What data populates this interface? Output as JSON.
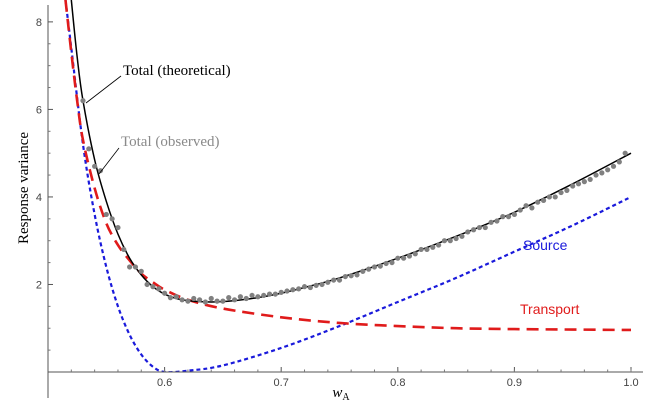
{
  "chart_data": {
    "type": "line",
    "title": "",
    "xlabel_base": "w",
    "xlabel_sub": "A",
    "ylabel": "Response variance",
    "xlim": [
      0.5,
      1.0
    ],
    "ylim": [
      0,
      8.5
    ],
    "xticks": [
      "0.6",
      "0.7",
      "0.8",
      "0.9",
      "1.0"
    ],
    "yticks": [
      "2",
      "4",
      "6",
      "8"
    ],
    "grid": false,
    "colors": {
      "total_theoretical": "#000000",
      "total_observed": "#808080",
      "source": "#1a1adb",
      "transport": "#e01b1b"
    },
    "series": [
      {
        "name": "Total (theoretical)",
        "style": "solid",
        "x": [
          0.52,
          0.525,
          0.53,
          0.54,
          0.55,
          0.56,
          0.57,
          0.58,
          0.59,
          0.6,
          0.61,
          0.62,
          0.64,
          0.66,
          0.68,
          0.7,
          0.72,
          0.75,
          0.8,
          0.85,
          0.9,
          0.95,
          1.0
        ],
        "y": [
          8.5,
          7.2,
          6.2,
          4.85,
          3.9,
          3.15,
          2.6,
          2.22,
          1.95,
          1.78,
          1.68,
          1.63,
          1.6,
          1.63,
          1.7,
          1.8,
          1.93,
          2.15,
          2.6,
          3.1,
          3.65,
          4.3,
          5.0
        ]
      },
      {
        "name": "Total (observed)",
        "style": "points",
        "x": [
          0.53,
          0.535,
          0.54,
          0.545,
          0.55,
          0.555,
          0.56,
          0.565,
          0.57,
          0.575,
          0.58,
          0.585,
          0.59,
          0.595,
          0.6,
          0.605,
          0.61,
          0.615,
          0.62,
          0.625,
          0.63,
          0.635,
          0.64,
          0.645,
          0.65,
          0.655,
          0.66,
          0.665,
          0.67,
          0.675,
          0.68,
          0.685,
          0.69,
          0.695,
          0.7,
          0.705,
          0.71,
          0.715,
          0.72,
          0.725,
          0.73,
          0.735,
          0.74,
          0.745,
          0.75,
          0.755,
          0.76,
          0.765,
          0.77,
          0.775,
          0.78,
          0.785,
          0.79,
          0.795,
          0.8,
          0.805,
          0.81,
          0.815,
          0.82,
          0.825,
          0.83,
          0.835,
          0.84,
          0.845,
          0.85,
          0.855,
          0.86,
          0.865,
          0.87,
          0.875,
          0.88,
          0.885,
          0.89,
          0.895,
          0.9,
          0.905,
          0.91,
          0.915,
          0.92,
          0.925,
          0.93,
          0.935,
          0.94,
          0.945,
          0.95,
          0.955,
          0.96,
          0.965,
          0.97,
          0.975,
          0.98,
          0.985,
          0.99,
          0.995
        ],
        "y": [
          6.2,
          5.1,
          4.7,
          4.6,
          3.6,
          3.5,
          3.3,
          2.8,
          2.4,
          2.4,
          2.3,
          2.0,
          1.95,
          1.9,
          1.8,
          1.7,
          1.72,
          1.65,
          1.62,
          1.68,
          1.65,
          1.6,
          1.68,
          1.62,
          1.62,
          1.7,
          1.65,
          1.72,
          1.68,
          1.75,
          1.72,
          1.75,
          1.78,
          1.78,
          1.82,
          1.85,
          1.88,
          1.9,
          1.95,
          1.93,
          1.98,
          2.0,
          2.05,
          2.1,
          2.1,
          2.18,
          2.2,
          2.22,
          2.3,
          2.35,
          2.4,
          2.42,
          2.48,
          2.5,
          2.6,
          2.6,
          2.65,
          2.7,
          2.8,
          2.8,
          2.85,
          2.9,
          3.0,
          3.0,
          3.05,
          3.1,
          3.2,
          3.25,
          3.3,
          3.3,
          3.42,
          3.45,
          3.55,
          3.55,
          3.6,
          3.7,
          3.8,
          3.75,
          3.88,
          3.92,
          4.0,
          4.0,
          4.1,
          4.15,
          4.25,
          4.3,
          4.35,
          4.4,
          4.5,
          4.55,
          4.62,
          4.7,
          4.8,
          5.0
        ]
      },
      {
        "name": "Source",
        "style": "dotted",
        "x": [
          0.515,
          0.52,
          0.53,
          0.54,
          0.55,
          0.56,
          0.57,
          0.58,
          0.59,
          0.6,
          0.62,
          0.65,
          0.7,
          0.75,
          0.8,
          0.85,
          0.9,
          0.95,
          1.0
        ],
        "y": [
          8.5,
          7.4,
          5.2,
          3.6,
          2.4,
          1.5,
          0.85,
          0.4,
          0.12,
          0.0,
          0.03,
          0.15,
          0.55,
          1.05,
          1.6,
          2.15,
          2.75,
          3.35,
          4.0
        ]
      },
      {
        "name": "Transport",
        "style": "dashed",
        "x": [
          0.515,
          0.52,
          0.525,
          0.53,
          0.54,
          0.55,
          0.56,
          0.57,
          0.58,
          0.59,
          0.6,
          0.62,
          0.65,
          0.7,
          0.75,
          0.8,
          0.85,
          0.9,
          0.95,
          1.0
        ],
        "y": [
          8.5,
          7.3,
          6.2,
          5.3,
          4.2,
          3.4,
          2.9,
          2.55,
          2.25,
          2.05,
          1.88,
          1.65,
          1.45,
          1.25,
          1.12,
          1.05,
          1.0,
          0.98,
          0.97,
          0.96
        ]
      }
    ],
    "annotations": [
      {
        "text": "Total (theoretical)",
        "series": "Total (theoretical)"
      },
      {
        "text": "Total (observed)",
        "series": "Total (observed)"
      },
      {
        "text": "Source",
        "series": "Source"
      },
      {
        "text": "Transport",
        "series": "Transport"
      }
    ]
  }
}
